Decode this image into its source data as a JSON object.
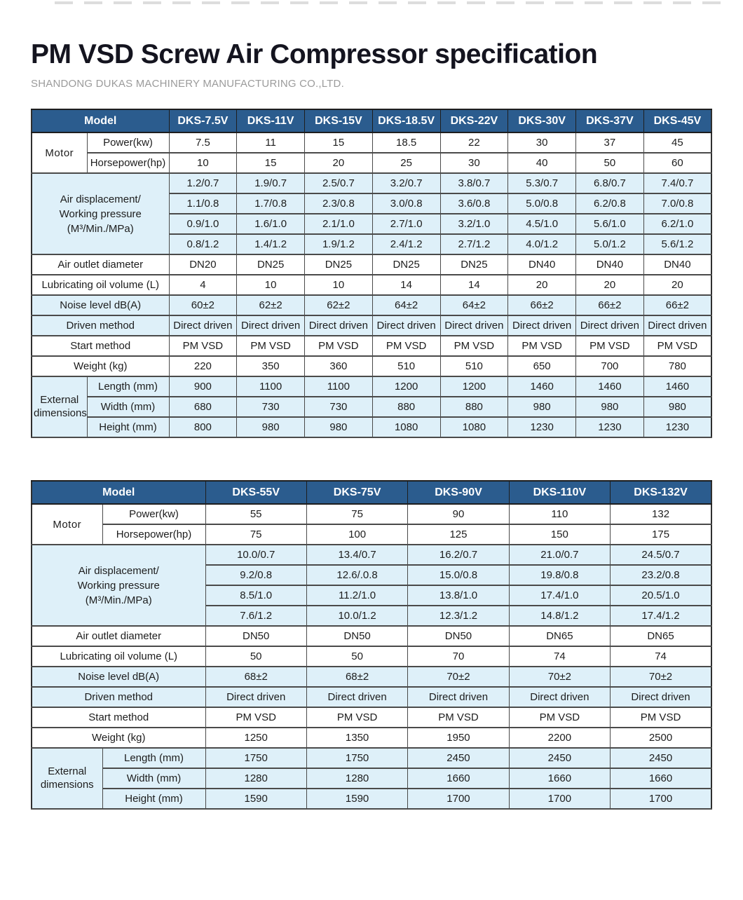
{
  "page": {
    "title": "PM VSD Screw Air Compressor specification",
    "subtitle": "SHANDONG DUKAS MACHINERY MANUFACTURING CO.,LTD."
  },
  "colors": {
    "header_bg": "#2b5c8e",
    "header_text": "#ffffff",
    "shaded_row_bg": "#def0f9",
    "border": "#4a4a4a"
  },
  "table1": {
    "header": {
      "model_label": "Model",
      "models": [
        "DKS-7.5V",
        "DKS-11V",
        "DKS-15V",
        "DKS-18.5V",
        "DKS-22V",
        "DKS-30V",
        "DKS-37V",
        "DKS-45V"
      ]
    },
    "motor": {
      "label": "Motor",
      "rows": [
        {
          "label": "Power(kw)",
          "values": [
            "7.5",
            "11",
            "15",
            "18.5",
            "22",
            "30",
            "37",
            "45"
          ]
        },
        {
          "label": "Horsepower(hp)",
          "values": [
            "10",
            "15",
            "20",
            "25",
            "30",
            "40",
            "50",
            "60"
          ]
        }
      ]
    },
    "air_displacement": {
      "label_lines": [
        "Air displacement/",
        "Working pressure",
        "(M³/Min./MPa)"
      ],
      "rows": [
        [
          "1.2/0.7",
          "1.9/0.7",
          "2.5/0.7",
          "3.2/0.7",
          "3.8/0.7",
          "5.3/0.7",
          "6.8/0.7",
          "7.4/0.7"
        ],
        [
          "1.1/0.8",
          "1.7/0.8",
          "2.3/0.8",
          "3.0/0.8",
          "3.6/0.8",
          "5.0/0.8",
          "6.2/0.8",
          "7.0/0.8"
        ],
        [
          "0.9/1.0",
          "1.6/1.0",
          "2.1/1.0",
          "2.7/1.0",
          "3.2/1.0",
          "4.5/1.0",
          "5.6/1.0",
          "6.2/1.0"
        ],
        [
          "0.8/1.2",
          "1.4/1.2",
          "1.9/1.2",
          "2.4/1.2",
          "2.7/1.2",
          "4.0/1.2",
          "5.0/1.2",
          "5.6/1.2"
        ]
      ]
    },
    "specs": [
      {
        "label": "Air outlet diameter",
        "values": [
          "DN20",
          "DN25",
          "DN25",
          "DN25",
          "DN25",
          "DN40",
          "DN40",
          "DN40"
        ]
      },
      {
        "label": "Lubricating oil volume (L)",
        "values": [
          "4",
          "10",
          "10",
          "14",
          "14",
          "20",
          "20",
          "20"
        ]
      },
      {
        "label": "Noise level dB(A)",
        "values": [
          "60±2",
          "62±2",
          "62±2",
          "64±2",
          "64±2",
          "66±2",
          "66±2",
          "66±2"
        ]
      },
      {
        "label": "Driven method",
        "values": [
          "Direct driven",
          "Direct driven",
          "Direct driven",
          "Direct driven",
          "Direct driven",
          "Direct driven",
          "Direct driven",
          "Direct driven"
        ]
      },
      {
        "label": "Start method",
        "values": [
          "PM VSD",
          "PM VSD",
          "PM VSD",
          "PM VSD",
          "PM VSD",
          "PM VSD",
          "PM VSD",
          "PM VSD"
        ]
      },
      {
        "label": "Weight (kg)",
        "values": [
          "220",
          "350",
          "360",
          "510",
          "510",
          "650",
          "700",
          "780"
        ]
      }
    ],
    "external_dimensions": {
      "label": "External dimensions",
      "rows": [
        {
          "label": "Length (mm)",
          "values": [
            "900",
            "1100",
            "1100",
            "1200",
            "1200",
            "1460",
            "1460",
            "1460"
          ]
        },
        {
          "label": "Width (mm)",
          "values": [
            "680",
            "730",
            "730",
            "880",
            "880",
            "980",
            "980",
            "980"
          ]
        },
        {
          "label": "Height (mm)",
          "values": [
            "800",
            "980",
            "980",
            "1080",
            "1080",
            "1230",
            "1230",
            "1230"
          ]
        }
      ]
    }
  },
  "table2": {
    "header": {
      "model_label": "Model",
      "models": [
        "DKS-55V",
        "DKS-75V",
        "DKS-90V",
        "DKS-110V",
        "DKS-132V"
      ]
    },
    "motor": {
      "label": "Motor",
      "rows": [
        {
          "label": "Power(kw)",
          "values": [
            "55",
            "75",
            "90",
            "110",
            "132"
          ]
        },
        {
          "label": "Horsepower(hp)",
          "values": [
            "75",
            "100",
            "125",
            "150",
            "175"
          ]
        }
      ]
    },
    "air_displacement": {
      "label_lines": [
        "Air displacement/",
        "Working pressure",
        "(M³/Min./MPa)"
      ],
      "rows": [
        [
          "10.0/0.7",
          "13.4/0.7",
          "16.2/0.7",
          "21.0/0.7",
          "24.5/0.7"
        ],
        [
          "9.2/0.8",
          "12.6/.0.8",
          "15.0/0.8",
          "19.8/0.8",
          "23.2/0.8"
        ],
        [
          "8.5/1.0",
          "11.2/1.0",
          "13.8/1.0",
          "17.4/1.0",
          "20.5/1.0"
        ],
        [
          "7.6/1.2",
          "10.0/1.2",
          "12.3/1.2",
          "14.8/1.2",
          "17.4/1.2"
        ]
      ]
    },
    "specs": [
      {
        "label": "Air outlet diameter",
        "values": [
          "DN50",
          "DN50",
          "DN50",
          "DN65",
          "DN65"
        ]
      },
      {
        "label": "Lubricating oil volume (L)",
        "values": [
          "50",
          "50",
          "70",
          "74",
          "74"
        ]
      },
      {
        "label": "Noise level dB(A)",
        "values": [
          "68±2",
          "68±2",
          "70±2",
          "70±2",
          "70±2"
        ]
      },
      {
        "label": "Driven method",
        "values": [
          "Direct driven",
          "Direct driven",
          "Direct driven",
          "Direct driven",
          "Direct driven"
        ]
      },
      {
        "label": "Start method",
        "values": [
          "PM VSD",
          "PM VSD",
          "PM VSD",
          "PM VSD",
          "PM VSD"
        ]
      },
      {
        "label": "Weight (kg)",
        "values": [
          "1250",
          "1350",
          "1950",
          "2200",
          "2500"
        ]
      }
    ],
    "external_dimensions": {
      "label": "External dimensions",
      "rows": [
        {
          "label": "Length (mm)",
          "values": [
            "1750",
            "1750",
            "2450",
            "2450",
            "2450"
          ]
        },
        {
          "label": "Width (mm)",
          "values": [
            "1280",
            "1280",
            "1660",
            "1660",
            "1660"
          ]
        },
        {
          "label": "Height (mm)",
          "values": [
            "1590",
            "1590",
            "1700",
            "1700",
            "1700"
          ]
        }
      ]
    }
  }
}
